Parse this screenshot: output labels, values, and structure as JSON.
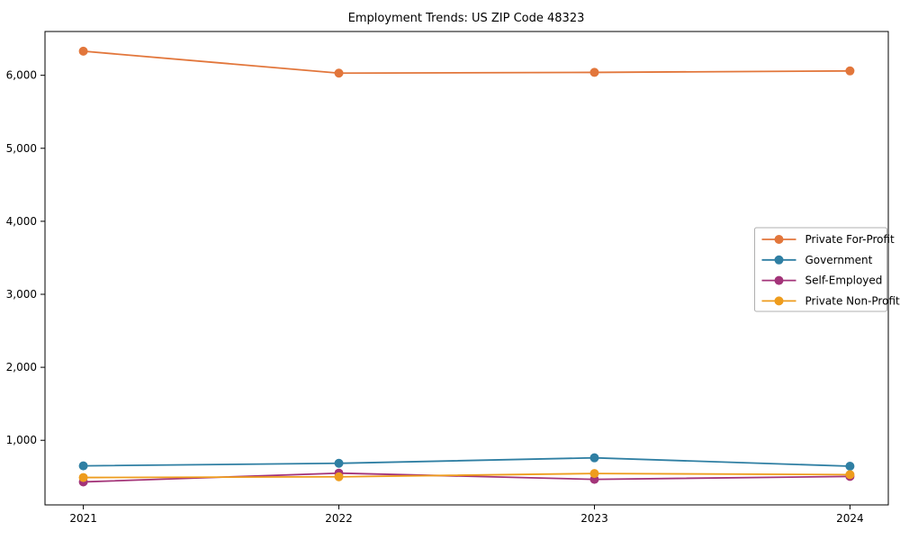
{
  "chart_data": {
    "type": "line",
    "title": "Employment Trends: US ZIP Code 48323",
    "x": [
      2021,
      2022,
      2023,
      2024
    ],
    "xtick_labels": [
      "2021",
      "2022",
      "2023",
      "2024"
    ],
    "yticks": [
      1000,
      2000,
      3000,
      4000,
      5000,
      6000
    ],
    "ytick_labels": [
      "1,000",
      "2,000",
      "3,000",
      "4,000",
      "5,000",
      "6,000"
    ],
    "xlim_years": [
      2020.85,
      2024.15
    ],
    "ylim": [
      115,
      6600
    ],
    "grid": false,
    "legend_position": "center right",
    "series": [
      {
        "name": "Private For-Profit",
        "color": "#E2763B",
        "values": [
          6330,
          6030,
          6040,
          6060
        ]
      },
      {
        "name": "Government",
        "color": "#2F7FA3",
        "values": [
          650,
          685,
          760,
          645
        ]
      },
      {
        "name": "Self-Employed",
        "color": "#A33479",
        "values": [
          430,
          550,
          465,
          505
        ]
      },
      {
        "name": "Private Non-Profit",
        "color": "#EE9C1D",
        "values": [
          490,
          500,
          545,
          530
        ]
      }
    ],
    "axis_color": "#000000",
    "background_color": "#ffffff"
  }
}
